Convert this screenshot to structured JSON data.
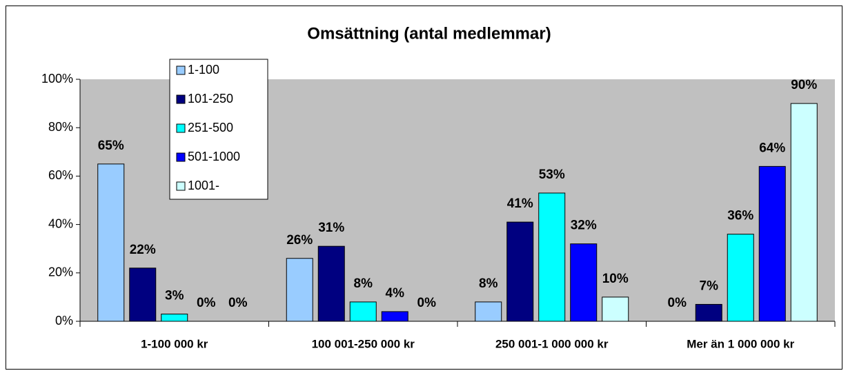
{
  "chart_data": {
    "type": "bar",
    "title": "Omsättning (antal medlemmar)",
    "categories": [
      "1-100 000 kr",
      "100 001-250 000 kr",
      "250 001-1 000 000 kr",
      "Mer än 1 000 000 kr"
    ],
    "series": [
      {
        "name": "1-100",
        "color": "#99ccff",
        "values": [
          65,
          26,
          8,
          0
        ],
        "value_labels": [
          "65%",
          "26%",
          "8%",
          "0%"
        ]
      },
      {
        "name": "101-250",
        "color": "#000080",
        "values": [
          22,
          31,
          41,
          7
        ],
        "value_labels": [
          "22%",
          "31%",
          "41%",
          "7%"
        ]
      },
      {
        "name": "251-500",
        "color": "#00ffff",
        "values": [
          3,
          8,
          53,
          36
        ],
        "value_labels": [
          "3%",
          "8%",
          "53%",
          "36%"
        ]
      },
      {
        "name": "501-1000",
        "color": "#0000ff",
        "values": [
          0,
          4,
          32,
          64
        ],
        "value_labels": [
          "0%",
          "4%",
          "32%",
          "64%"
        ]
      },
      {
        "name": "1001-",
        "color": "#ccffff",
        "values": [
          0,
          0,
          10,
          90
        ],
        "value_labels": [
          "0%",
          "0%",
          "10%",
          "90%"
        ]
      }
    ],
    "ylim": [
      0,
      100
    ],
    "yticks": [
      {
        "value": 0,
        "label": "0%"
      },
      {
        "value": 20,
        "label": "20%"
      },
      {
        "value": 40,
        "label": "40%"
      },
      {
        "value": 60,
        "label": "60%"
      },
      {
        "value": 80,
        "label": "80%"
      },
      {
        "value": 100,
        "label": "100%"
      }
    ],
    "grid": false,
    "legend": "upper left",
    "plot_background": "#c0c0c0"
  }
}
